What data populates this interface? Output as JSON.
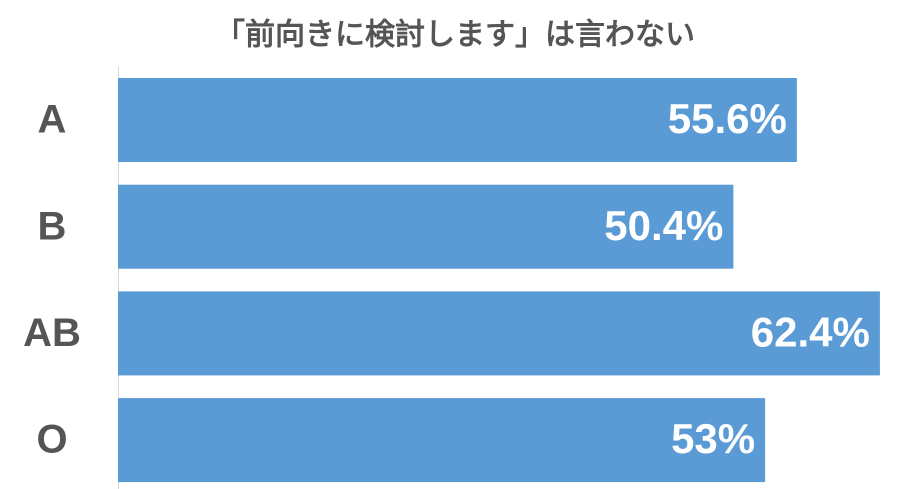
{
  "chart_data": {
    "type": "bar",
    "orientation": "horizontal",
    "title": "「前向きに検討します」は言わない",
    "categories": [
      "A",
      "B",
      "AB",
      "O"
    ],
    "values": [
      55.6,
      50.4,
      62.4,
      53
    ],
    "value_labels": [
      "55.6%",
      "50.4%",
      "62.4%",
      "53%"
    ],
    "color": "#5b9bd5"
  }
}
